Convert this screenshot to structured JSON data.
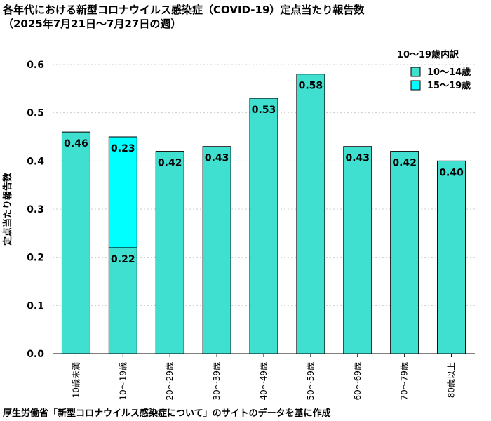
{
  "title": "各年代における新型コロナウイルス感染症（COVID-19）定点当たり報告数",
  "subtitle": "（2025年7月21日〜7月27日の週）",
  "source": "厚生労働省「新型コロナウイルス感染症について」のサイトのデータを基に作成",
  "colors": {
    "main": "#40E0D0",
    "teen_upper": "#00FFFF",
    "grid": "#cccccc",
    "stroke": "#000000"
  },
  "chart_data": {
    "type": "bar",
    "title": "各年代における新型コロナウイルス感染症（COVID-19）定点当たり報告数",
    "subtitle": "（2025年7月21日〜7月27日の週）",
    "ylabel": "定点当たり報告数",
    "xlabel": "",
    "ylim": [
      0,
      0.6
    ],
    "yticks": [
      "0.0",
      "0.1",
      "0.2",
      "0.3",
      "0.4",
      "0.5",
      "0.6"
    ],
    "grid": true,
    "legend_position": "top-right",
    "categories": [
      "10歳未満",
      "10〜19歳",
      "20〜29歳",
      "30〜39歳",
      "40〜49歳",
      "50〜59歳",
      "60〜69歳",
      "70〜79歳",
      "80歳以上"
    ],
    "values": [
      0.46,
      0.45,
      0.42,
      0.43,
      0.53,
      0.58,
      0.43,
      0.42,
      0.4
    ],
    "labels": [
      "0.46",
      null,
      "0.42",
      "0.43",
      "0.53",
      "0.58",
      "0.43",
      "0.42",
      "0.40"
    ],
    "breakdown": {
      "category": "10〜19歳",
      "title": "10〜19歳内訳",
      "parts": [
        {
          "name": "10〜14歳",
          "value": 0.22,
          "label": "0.22"
        },
        {
          "name": "15〜19歳",
          "value": 0.23,
          "label": "0.23"
        }
      ]
    }
  }
}
